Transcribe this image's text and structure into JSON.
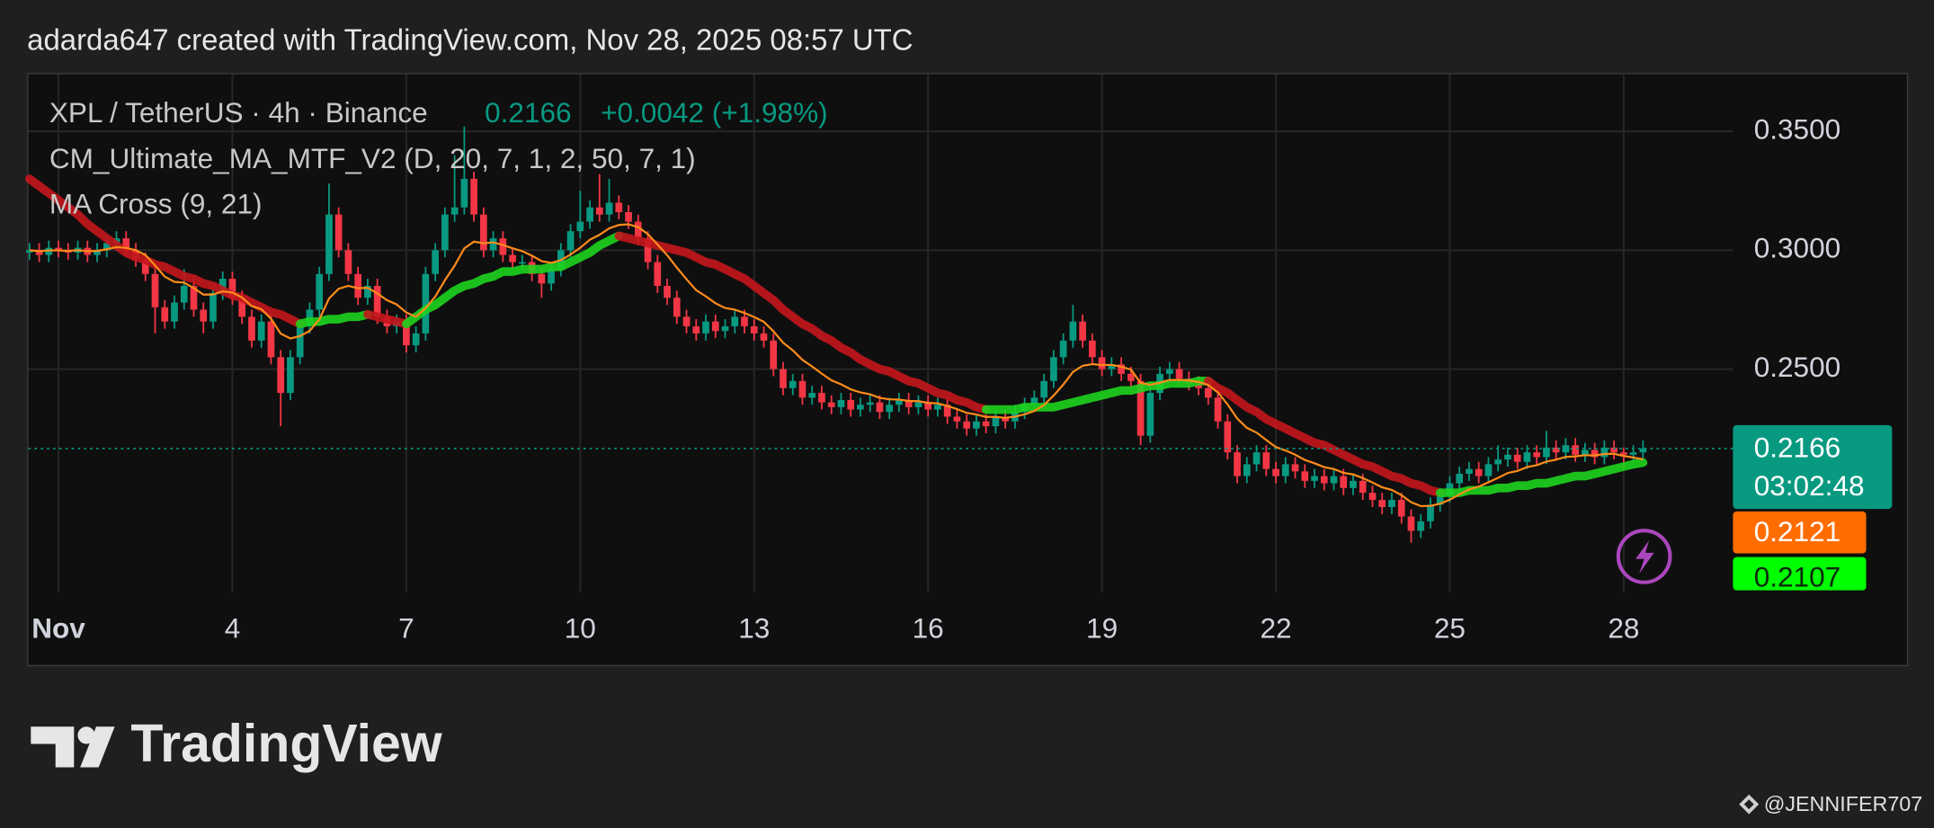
{
  "header": {
    "caption": "adarda647 created with TradingView.com, Nov 28, 2025 08:57 UTC"
  },
  "footer": {
    "brand": "TradingView",
    "watermark": "@JENNIFER707"
  },
  "chart_data": {
    "type": "candlestick",
    "title": "XPL / TetherUS · 4h · Binance",
    "change": "+0.0042 (+1.98%)",
    "countdown": "03:02:48",
    "up_color": "#089981",
    "down_color": "#f23645",
    "grid": true,
    "ylim": [
      0.151,
      0.374
    ],
    "yticks": [
      {
        "value": 0.35,
        "label": "0.3500"
      },
      {
        "value": 0.3,
        "label": "0.3000"
      },
      {
        "value": 0.25,
        "label": "0.2500"
      }
    ],
    "categories": [
      null,
      null,
      null,
      "Nov",
      null,
      null,
      null,
      null,
      null,
      null,
      null,
      null,
      null,
      null,
      null,
      null,
      null,
      null,
      null,
      null,
      null,
      "4",
      null,
      null,
      null,
      null,
      null,
      null,
      null,
      null,
      null,
      null,
      null,
      null,
      null,
      null,
      null,
      null,
      null,
      "7",
      null,
      null,
      null,
      null,
      null,
      null,
      null,
      null,
      null,
      null,
      null,
      null,
      null,
      null,
      null,
      null,
      null,
      "10",
      null,
      null,
      null,
      null,
      null,
      null,
      null,
      null,
      null,
      null,
      null,
      null,
      null,
      null,
      null,
      null,
      null,
      "13",
      null,
      null,
      null,
      null,
      null,
      null,
      null,
      null,
      null,
      null,
      null,
      null,
      null,
      null,
      null,
      null,
      null,
      "16",
      null,
      null,
      null,
      null,
      null,
      null,
      null,
      null,
      null,
      null,
      null,
      null,
      null,
      null,
      null,
      null,
      null,
      "19",
      null,
      null,
      null,
      null,
      null,
      null,
      null,
      null,
      null,
      null,
      null,
      null,
      null,
      null,
      null,
      null,
      null,
      "22",
      null,
      null,
      null,
      null,
      null,
      null,
      null,
      null,
      null,
      null,
      null,
      null,
      null,
      null,
      null,
      null,
      null,
      "25",
      null,
      null,
      null,
      null,
      null,
      null,
      null,
      null,
      null,
      null,
      null,
      null,
      null,
      null,
      null,
      null,
      null,
      "28",
      null,
      null
    ],
    "open": [
      0.299,
      0.3,
      0.298,
      0.301,
      0.3,
      0.299,
      0.301,
      0.298,
      0.3,
      0.303,
      0.305,
      0.3,
      0.296,
      0.29,
      0.276,
      0.27,
      0.278,
      0.285,
      0.275,
      0.27,
      0.282,
      0.288,
      0.28,
      0.272,
      0.262,
      0.27,
      0.255,
      0.24,
      0.255,
      0.268,
      0.275,
      0.29,
      0.315,
      0.3,
      0.29,
      0.28,
      0.285,
      0.272,
      0.268,
      0.27,
      0.26,
      0.265,
      0.29,
      0.3,
      0.315,
      0.318,
      0.33,
      0.315,
      0.3,
      0.305,
      0.298,
      0.295,
      0.295,
      0.29,
      0.286,
      0.292,
      0.3,
      0.308,
      0.312,
      0.318,
      0.315,
      0.32,
      0.316,
      0.312,
      0.305,
      0.295,
      0.285,
      0.28,
      0.272,
      0.268,
      0.265,
      0.27,
      0.266,
      0.268,
      0.272,
      0.268,
      0.265,
      0.262,
      0.25,
      0.242,
      0.245,
      0.238,
      0.24,
      0.236,
      0.234,
      0.237,
      0.233,
      0.235,
      0.236,
      0.232,
      0.235,
      0.237,
      0.234,
      0.236,
      0.233,
      0.235,
      0.23,
      0.228,
      0.225,
      0.228,
      0.226,
      0.23,
      0.228,
      0.232,
      0.235,
      0.238,
      0.245,
      0.255,
      0.262,
      0.27,
      0.262,
      0.255,
      0.25,
      0.252,
      0.248,
      0.245,
      0.222,
      0.24,
      0.248,
      0.25,
      0.246,
      0.244,
      0.242,
      0.238,
      0.228,
      0.215,
      0.205,
      0.21,
      0.215,
      0.208,
      0.205,
      0.21,
      0.207,
      0.203,
      0.205,
      0.202,
      0.205,
      0.2,
      0.203,
      0.198,
      0.195,
      0.192,
      0.195,
      0.188,
      0.182,
      0.186,
      0.193,
      0.197,
      0.202,
      0.206,
      0.208,
      0.205,
      0.21,
      0.212,
      0.214,
      0.211,
      0.215,
      0.213,
      0.217,
      0.215,
      0.218,
      0.214,
      0.216,
      0.213,
      0.217,
      0.215,
      0.214,
      0.215
    ],
    "high": [
      0.303,
      0.303,
      0.304,
      0.304,
      0.303,
      0.304,
      0.304,
      0.303,
      0.306,
      0.308,
      0.308,
      0.303,
      0.299,
      0.293,
      0.279,
      0.281,
      0.292,
      0.288,
      0.278,
      0.285,
      0.291,
      0.291,
      0.283,
      0.275,
      0.273,
      0.273,
      0.258,
      0.258,
      0.271,
      0.278,
      0.293,
      0.328,
      0.318,
      0.303,
      0.293,
      0.288,
      0.288,
      0.275,
      0.273,
      0.273,
      0.268,
      0.293,
      0.303,
      0.318,
      0.34,
      0.352,
      0.333,
      0.318,
      0.308,
      0.308,
      0.301,
      0.298,
      0.298,
      0.293,
      0.295,
      0.303,
      0.311,
      0.325,
      0.321,
      0.332,
      0.33,
      0.323,
      0.319,
      0.315,
      0.308,
      0.298,
      0.288,
      0.283,
      0.275,
      0.271,
      0.273,
      0.273,
      0.271,
      0.275,
      0.275,
      0.271,
      0.268,
      0.265,
      0.253,
      0.248,
      0.248,
      0.243,
      0.243,
      0.239,
      0.24,
      0.24,
      0.238,
      0.239,
      0.239,
      0.238,
      0.24,
      0.24,
      0.239,
      0.239,
      0.238,
      0.238,
      0.233,
      0.231,
      0.231,
      0.231,
      0.233,
      0.233,
      0.235,
      0.238,
      0.241,
      0.248,
      0.258,
      0.265,
      0.277,
      0.273,
      0.265,
      0.258,
      0.255,
      0.255,
      0.251,
      0.248,
      0.243,
      0.251,
      0.253,
      0.253,
      0.249,
      0.247,
      0.245,
      0.241,
      0.231,
      0.218,
      0.213,
      0.218,
      0.218,
      0.211,
      0.213,
      0.213,
      0.21,
      0.208,
      0.208,
      0.208,
      0.208,
      0.206,
      0.206,
      0.201,
      0.198,
      0.198,
      0.198,
      0.191,
      0.189,
      0.196,
      0.2,
      0.205,
      0.209,
      0.211,
      0.211,
      0.213,
      0.218,
      0.217,
      0.217,
      0.218,
      0.218,
      0.224,
      0.22,
      0.221,
      0.221,
      0.219,
      0.219,
      0.22,
      0.22,
      0.217,
      0.218,
      0.22
    ],
    "low": [
      0.296,
      0.295,
      0.295,
      0.297,
      0.296,
      0.296,
      0.295,
      0.295,
      0.297,
      0.3,
      0.297,
      0.293,
      0.287,
      0.265,
      0.267,
      0.267,
      0.275,
      0.272,
      0.265,
      0.267,
      0.279,
      0.277,
      0.269,
      0.259,
      0.259,
      0.252,
      0.226,
      0.237,
      0.252,
      0.265,
      0.272,
      0.287,
      0.297,
      0.287,
      0.277,
      0.277,
      0.269,
      0.265,
      0.265,
      0.257,
      0.257,
      0.262,
      0.287,
      0.297,
      0.312,
      0.315,
      0.312,
      0.297,
      0.297,
      0.295,
      0.292,
      0.292,
      0.287,
      0.28,
      0.283,
      0.289,
      0.297,
      0.305,
      0.309,
      0.312,
      0.312,
      0.313,
      0.309,
      0.302,
      0.292,
      0.282,
      0.277,
      0.269,
      0.265,
      0.262,
      0.262,
      0.263,
      0.263,
      0.265,
      0.265,
      0.262,
      0.259,
      0.247,
      0.239,
      0.239,
      0.235,
      0.235,
      0.233,
      0.231,
      0.231,
      0.23,
      0.23,
      0.232,
      0.229,
      0.229,
      0.232,
      0.231,
      0.231,
      0.23,
      0.23,
      0.227,
      0.225,
      0.222,
      0.222,
      0.223,
      0.223,
      0.225,
      0.225,
      0.229,
      0.232,
      0.235,
      0.242,
      0.252,
      0.259,
      0.259,
      0.252,
      0.247,
      0.247,
      0.245,
      0.242,
      0.218,
      0.219,
      0.237,
      0.245,
      0.243,
      0.241,
      0.239,
      0.235,
      0.225,
      0.212,
      0.202,
      0.202,
      0.207,
      0.205,
      0.202,
      0.202,
      0.204,
      0.2,
      0.2,
      0.199,
      0.199,
      0.197,
      0.197,
      0.195,
      0.192,
      0.189,
      0.189,
      0.185,
      0.177,
      0.179,
      0.183,
      0.19,
      0.194,
      0.199,
      0.203,
      0.202,
      0.202,
      0.207,
      0.209,
      0.208,
      0.208,
      0.21,
      0.21,
      0.212,
      0.212,
      0.211,
      0.211,
      0.21,
      0.21,
      0.212,
      0.208,
      0.211,
      0.212
    ],
    "close": [
      0.3,
      0.298,
      0.301,
      0.3,
      0.299,
      0.301,
      0.298,
      0.3,
      0.303,
      0.305,
      0.3,
      0.296,
      0.29,
      0.276,
      0.27,
      0.278,
      0.285,
      0.275,
      0.27,
      0.282,
      0.288,
      0.28,
      0.272,
      0.262,
      0.27,
      0.255,
      0.24,
      0.255,
      0.268,
      0.275,
      0.29,
      0.315,
      0.3,
      0.29,
      0.28,
      0.285,
      0.272,
      0.268,
      0.27,
      0.26,
      0.265,
      0.29,
      0.3,
      0.315,
      0.318,
      0.33,
      0.315,
      0.3,
      0.305,
      0.298,
      0.295,
      0.295,
      0.29,
      0.286,
      0.292,
      0.3,
      0.308,
      0.312,
      0.318,
      0.315,
      0.32,
      0.316,
      0.312,
      0.305,
      0.295,
      0.285,
      0.28,
      0.272,
      0.268,
      0.265,
      0.27,
      0.266,
      0.268,
      0.272,
      0.268,
      0.265,
      0.262,
      0.25,
      0.242,
      0.245,
      0.238,
      0.24,
      0.236,
      0.234,
      0.237,
      0.233,
      0.235,
      0.236,
      0.232,
      0.235,
      0.237,
      0.234,
      0.236,
      0.233,
      0.235,
      0.23,
      0.228,
      0.225,
      0.228,
      0.226,
      0.23,
      0.228,
      0.232,
      0.235,
      0.238,
      0.245,
      0.255,
      0.262,
      0.27,
      0.262,
      0.255,
      0.25,
      0.252,
      0.248,
      0.245,
      0.222,
      0.24,
      0.248,
      0.25,
      0.246,
      0.244,
      0.242,
      0.238,
      0.228,
      0.215,
      0.205,
      0.21,
      0.215,
      0.208,
      0.205,
      0.21,
      0.207,
      0.203,
      0.205,
      0.202,
      0.205,
      0.2,
      0.203,
      0.198,
      0.195,
      0.192,
      0.195,
      0.188,
      0.182,
      0.186,
      0.193,
      0.197,
      0.202,
      0.206,
      0.208,
      0.205,
      0.21,
      0.212,
      0.214,
      0.211,
      0.215,
      0.213,
      0.217,
      0.215,
      0.218,
      0.214,
      0.216,
      0.213,
      0.217,
      0.215,
      0.214,
      0.215,
      0.2166
    ],
    "series": [
      {
        "name": "CM_Ultimate_MA_MTF_V2 (D, 20, 7, 1, 2, 50, 7, 1)",
        "up_color": "#1ed41e",
        "down_color": "#c4161c",
        "values": [
          0.33,
          0.327,
          0.324,
          0.321,
          0.318,
          0.315,
          0.311,
          0.308,
          0.305,
          0.302,
          0.299,
          0.297,
          0.296,
          0.294,
          0.293,
          0.291,
          0.289,
          0.288,
          0.286,
          0.285,
          0.283,
          0.281,
          0.28,
          0.278,
          0.276,
          0.274,
          0.273,
          0.271,
          0.269,
          0.27,
          0.27,
          0.271,
          0.271,
          0.272,
          0.272,
          0.273,
          0.272,
          0.271,
          0.27,
          0.269,
          0.272,
          0.275,
          0.277,
          0.28,
          0.283,
          0.285,
          0.286,
          0.288,
          0.289,
          0.291,
          0.291,
          0.292,
          0.292,
          0.292,
          0.293,
          0.293,
          0.295,
          0.297,
          0.299,
          0.302,
          0.304,
          0.306,
          0.305,
          0.304,
          0.303,
          0.302,
          0.301,
          0.3,
          0.299,
          0.297,
          0.295,
          0.294,
          0.292,
          0.29,
          0.288,
          0.285,
          0.282,
          0.279,
          0.275,
          0.272,
          0.269,
          0.267,
          0.264,
          0.262,
          0.259,
          0.257,
          0.254,
          0.252,
          0.25,
          0.249,
          0.247,
          0.245,
          0.244,
          0.242,
          0.24,
          0.239,
          0.237,
          0.236,
          0.234,
          0.233,
          0.233,
          0.233,
          0.233,
          0.234,
          0.234,
          0.234,
          0.234,
          0.235,
          0.236,
          0.237,
          0.238,
          0.239,
          0.24,
          0.241,
          0.241,
          0.242,
          0.243,
          0.243,
          0.244,
          0.244,
          0.244,
          0.245,
          0.245,
          0.242,
          0.24,
          0.237,
          0.234,
          0.232,
          0.229,
          0.227,
          0.225,
          0.223,
          0.221,
          0.219,
          0.218,
          0.216,
          0.214,
          0.212,
          0.21,
          0.209,
          0.207,
          0.205,
          0.204,
          0.202,
          0.201,
          0.199,
          0.198,
          0.198,
          0.198,
          0.199,
          0.199,
          0.199,
          0.2,
          0.2,
          0.201,
          0.201,
          0.202,
          0.202,
          0.203,
          0.204,
          0.205,
          0.205,
          0.206,
          0.207,
          0.208,
          0.209,
          0.21,
          0.2107
        ]
      },
      {
        "name": "MA Cross (9, 21)",
        "color": "#ff8c1a",
        "values": [
          0.3,
          0.2996,
          0.2999,
          0.2999,
          0.2997,
          0.3,
          0.2996,
          0.2997,
          0.3004,
          0.3013,
          0.301,
          0.3,
          0.298,
          0.2936,
          0.2889,
          0.2867,
          0.2864,
          0.2841,
          0.2813,
          0.2814,
          0.2827,
          0.2822,
          0.2801,
          0.2765,
          0.2752,
          0.2712,
          0.2649,
          0.2629,
          0.2639,
          0.2661,
          0.2709,
          0.2797,
          0.2838,
          0.285,
          0.284,
          0.2842,
          0.2818,
          0.279,
          0.2772,
          0.2738,
          0.272,
          0.2756,
          0.2805,
          0.2874,
          0.2935,
          0.3008,
          0.3036,
          0.3029,
          0.3033,
          0.3022,
          0.3008,
          0.2996,
          0.2977,
          0.2954,
          0.2947,
          0.2958,
          0.2982,
          0.301,
          0.3044,
          0.3065,
          0.3092,
          0.3106,
          0.3109,
          0.3097,
          0.3068,
          0.3024,
          0.2979,
          0.2927,
          0.2878,
          0.2832,
          0.2806,
          0.2777,
          0.2757,
          0.275,
          0.2736,
          0.2719,
          0.2699,
          0.2659,
          0.2611,
          0.2579,
          0.2539,
          0.2511,
          0.2481,
          0.2453,
          0.2436,
          0.2415,
          0.2402,
          0.2394,
          0.2379,
          0.2373,
          0.2372,
          0.2366,
          0.2365,
          0.2358,
          0.2356,
          0.2345,
          0.2332,
          0.2316,
          0.2309,
          0.2299,
          0.2299,
          0.2295,
          0.23,
          0.231,
          0.2324,
          0.2349,
          0.2389,
          0.2435,
          0.2488,
          0.2514,
          0.2521,
          0.2517,
          0.2518,
          0.251,
          0.2498,
          0.2442,
          0.2434,
          0.2443,
          0.2454,
          0.2455,
          0.2452,
          0.2446,
          0.2433,
          0.2402,
          0.2352,
          0.2292,
          0.2253,
          0.2233,
          0.2202,
          0.2172,
          0.2158,
          0.214,
          0.2118,
          0.2104,
          0.2088,
          0.208,
          0.2064,
          0.2057,
          0.2042,
          0.2023,
          0.2003,
          0.1992,
          0.197,
          0.194,
          0.1924,
          0.1925,
          0.1934,
          0.1951,
          0.1973,
          0.1994,
          0.2006,
          0.2024,
          0.2043,
          0.2063,
          0.2072,
          0.2088,
          0.2096,
          0.2111,
          0.2119,
          0.2131,
          0.2133,
          0.2138,
          0.2137,
          0.2143,
          0.2144,
          0.2135,
          0.2128,
          0.2121
        ]
      }
    ]
  }
}
